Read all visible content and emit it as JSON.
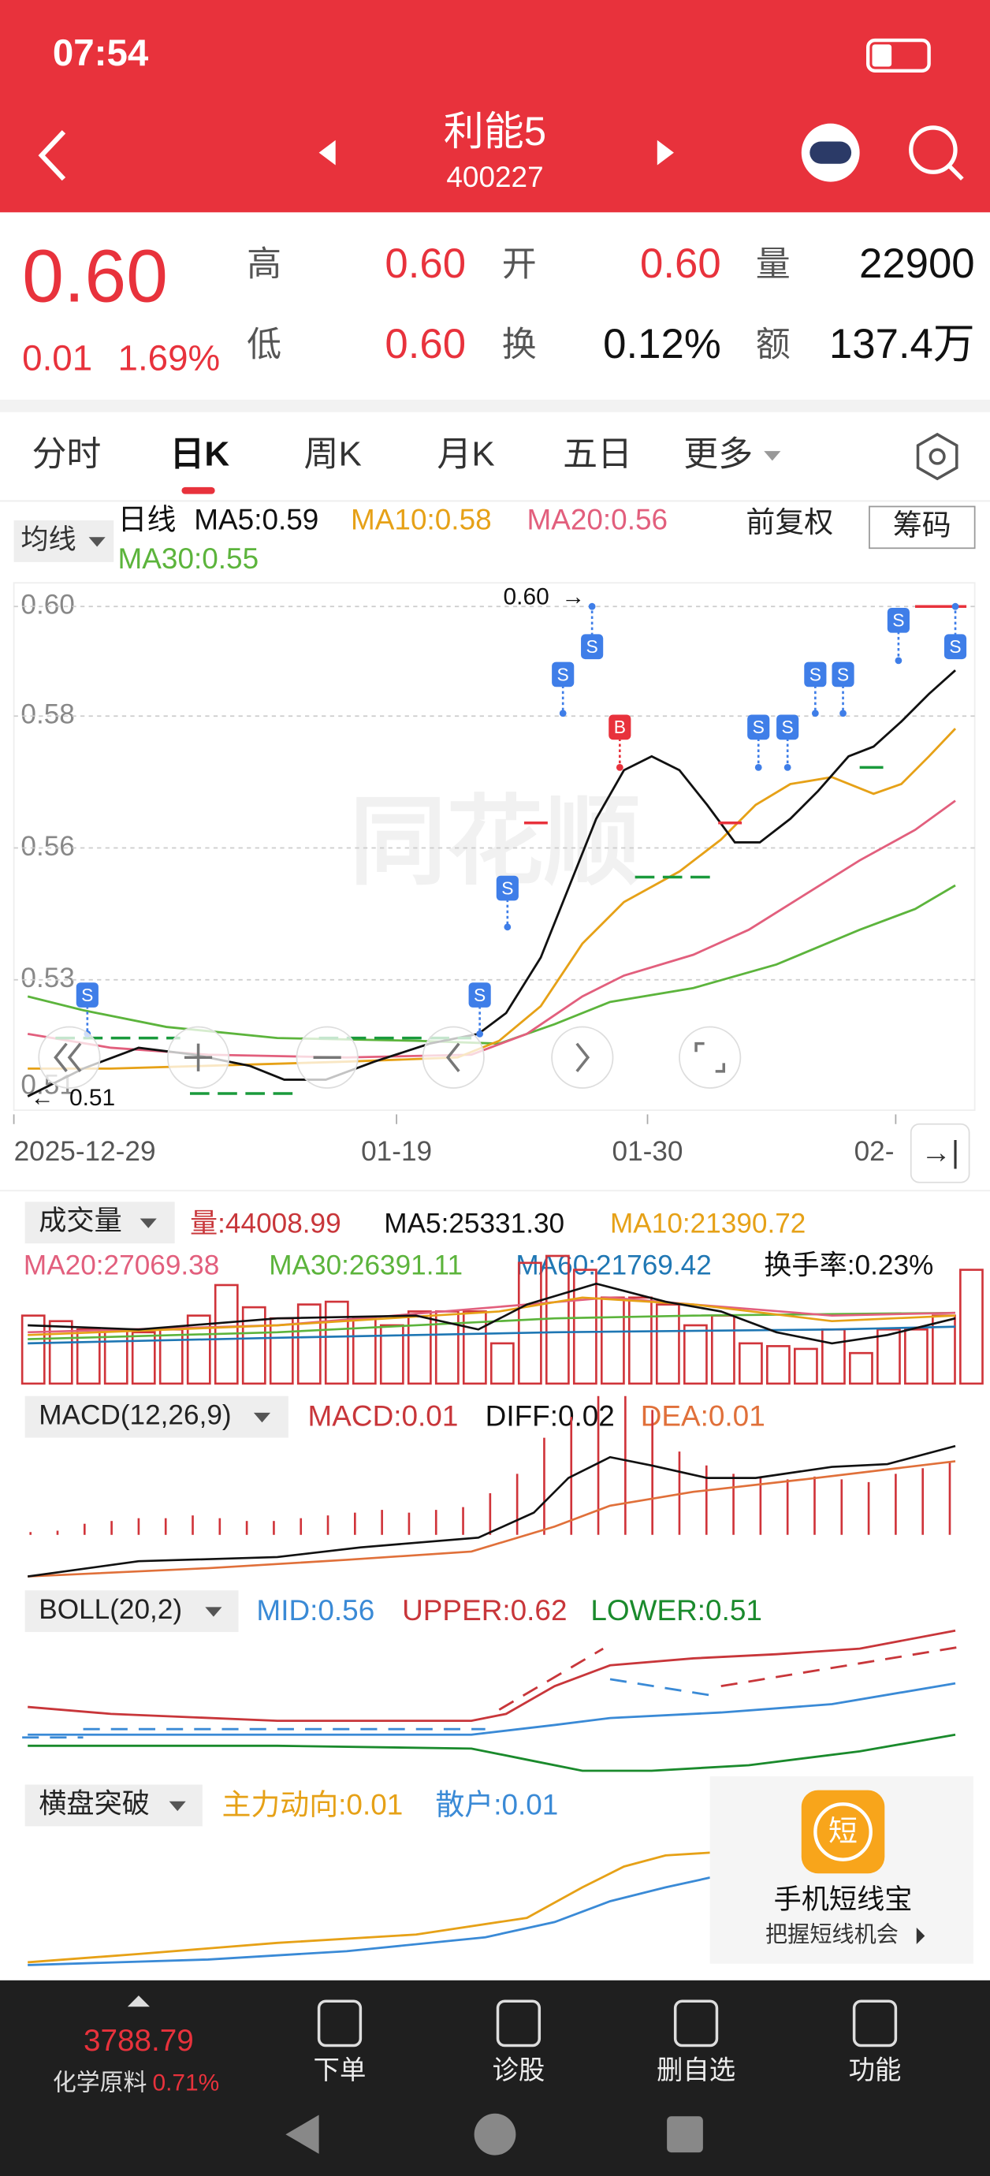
{
  "status": {
    "time": "07:54"
  },
  "header": {
    "title": "利能5",
    "code": "400227"
  },
  "quote": {
    "price": "0.60",
    "change": "0.01",
    "pct": "1.69%",
    "fields": [
      {
        "label": "高",
        "value": "0.60"
      },
      {
        "label": "开",
        "value": "0.60"
      },
      {
        "label": "量",
        "value": "22900"
      },
      {
        "label": "低",
        "value": "0.60"
      },
      {
        "label": "换",
        "value": "0.12%"
      },
      {
        "label": "额",
        "value": "137.4万"
      }
    ]
  },
  "tabs": [
    "分时",
    "日K",
    "周K",
    "月K",
    "五日",
    "更多"
  ],
  "kline": {
    "selector": "均线",
    "period": "日线",
    "ma": [
      "MA5:0.59",
      "MA10:0.58",
      "MA20:0.56",
      "MA30:0.55"
    ],
    "adjust": "前复权",
    "chips": "筹码",
    "yticks": [
      "0.60",
      "0.58",
      "0.56",
      "0.53",
      "0.51"
    ],
    "high_note": "0.60",
    "low_note": "0.51",
    "watermark": "同花顺",
    "signals": [
      "S",
      "S",
      "S",
      "S",
      "S",
      "B",
      "S",
      "S",
      "S",
      "S",
      "S",
      "S"
    ],
    "dates": [
      "2025-12-29",
      "01-19",
      "01-30",
      "02-"
    ]
  },
  "volume": {
    "title": "成交量",
    "items": [
      "量:44008.99",
      "MA5:25331.30",
      "MA10:21390.72",
      "MA20:27069.38",
      "MA30:26391.11",
      "MA60:21769.42",
      "换手率:0.23%"
    ]
  },
  "macd": {
    "title": "MACD(12,26,9)",
    "items": [
      "MACD:0.01",
      "DIFF:0.02",
      "DEA:0.01"
    ]
  },
  "boll": {
    "title": "BOLL(20,2)",
    "items": [
      "MID:0.56",
      "UPPER:0.62",
      "LOWER:0.51"
    ]
  },
  "hengpan": {
    "title": "横盘突破",
    "items": [
      "主力动向:0.01",
      "散户:0.01"
    ]
  },
  "ad": {
    "icon": "短",
    "title": "手机短线宝",
    "subtitle": "把握短线机会"
  },
  "footer": {
    "index": "3788.79",
    "sector": "化学原料",
    "sector_pct": "0.71%",
    "nav": [
      "下单",
      "诊股",
      "删自选",
      "功能"
    ]
  }
}
